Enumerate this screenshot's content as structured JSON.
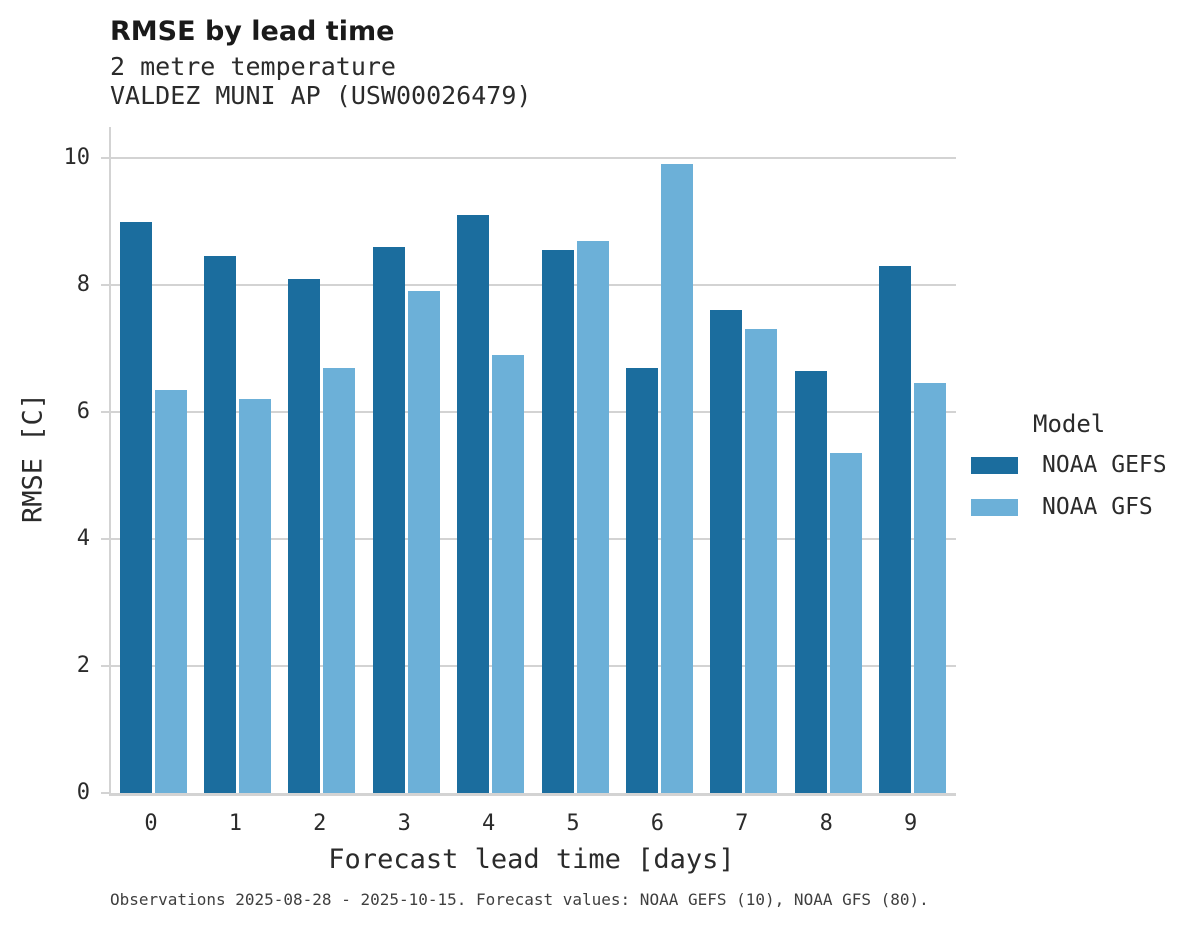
{
  "header": {
    "title": "RMSE by lead time",
    "subtitle_line1": "2 metre temperature",
    "subtitle_line2": "VALDEZ MUNI AP (USW00026479)"
  },
  "chart_data": {
    "type": "bar",
    "title": "RMSE by lead time",
    "subtitle_lines": [
      "2 metre temperature",
      "VALDEZ MUNI AP (USW00026479)"
    ],
    "categories": [
      "0",
      "1",
      "2",
      "3",
      "4",
      "5",
      "6",
      "7",
      "8",
      "9"
    ],
    "series": [
      {
        "name": "NOAA GEFS",
        "color": "#1b6d9e",
        "values": [
          9.0,
          8.45,
          8.1,
          8.6,
          9.1,
          8.55,
          6.7,
          7.6,
          6.65,
          8.3
        ]
      },
      {
        "name": "NOAA GFS",
        "color": "#6cb0d8",
        "values": [
          6.35,
          6.2,
          6.7,
          7.9,
          6.9,
          8.7,
          9.9,
          7.3,
          5.35,
          6.45
        ]
      }
    ],
    "xlabel": "Forecast lead time [days]",
    "ylabel": "RMSE [C]",
    "ylim": [
      0,
      10
    ],
    "yticks": [
      0,
      2,
      4,
      6,
      8,
      10
    ],
    "grid": "horizontal",
    "legend_title": "Model",
    "legend_position": "right"
  },
  "legend": {
    "title": "Model",
    "items": [
      {
        "label": "NOAA GEFS",
        "color": "#1b6d9e"
      },
      {
        "label": "NOAA GFS",
        "color": "#6cb0d8"
      }
    ]
  },
  "footer": {
    "caption": "Observations 2025-08-28 - 2025-10-15. Forecast values: NOAA GEFS (10), NOAA GFS (80)."
  },
  "colors": {
    "grid": "#d3d3d3",
    "axis": "#d3d3d3",
    "title_text": "#1a1a1a",
    "text": "#2b2b2b",
    "caption_text": "#3f3f3f",
    "background": "#ffffff"
  }
}
